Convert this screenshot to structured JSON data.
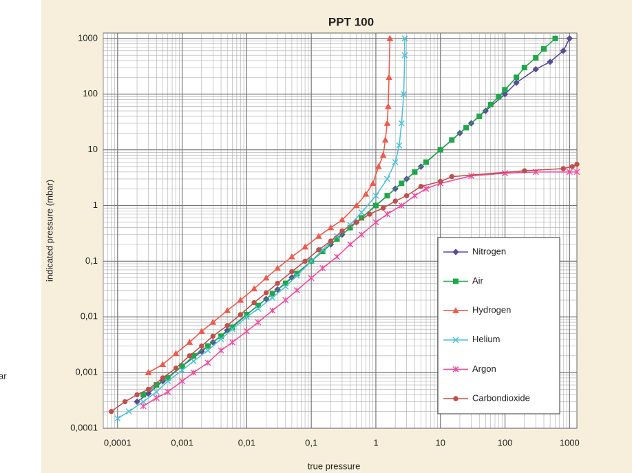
{
  "chart_data": {
    "type": "line",
    "title": "PPT 100",
    "xlabel": "true pressure",
    "ylabel": "indicated pressure (mbar)",
    "annotations": [
      "ar"
    ],
    "xscale": "log",
    "yscale": "log",
    "grid": true,
    "legend": "lower right",
    "xlim": [
      6e-05,
      1300
    ],
    "ylim": [
      0.0001,
      1250
    ],
    "xticks": [
      {
        "value": 0.0001,
        "label": "0,0001"
      },
      {
        "value": 0.001,
        "label": "0,001"
      },
      {
        "value": 0.01,
        "label": "0,01"
      },
      {
        "value": 0.1,
        "label": "0,1"
      },
      1,
      10,
      100,
      1000
    ],
    "yticks": [
      {
        "value": 0.0001,
        "label": "0,0001"
      },
      {
        "value": 0.001,
        "label": "0,001"
      },
      {
        "value": 0.01,
        "label": "0,01"
      },
      {
        "value": 0.1,
        "label": "0,1"
      },
      1,
      10,
      100,
      1000
    ],
    "series": [
      {
        "name": "Nitrogen",
        "color": "#5a4a9c",
        "marker": "diamond",
        "x": [
          0.0002,
          0.0003,
          0.0005,
          0.001,
          0.002,
          0.003,
          0.005,
          0.01,
          0.02,
          0.03,
          0.05,
          0.1,
          0.2,
          0.3,
          0.5,
          1,
          2,
          3,
          5,
          10,
          20,
          30,
          50,
          100,
          150,
          300,
          500,
          800,
          1000
        ],
        "values": [
          0.0003,
          0.00042,
          0.0007,
          0.0013,
          0.0024,
          0.0035,
          0.0057,
          0.011,
          0.021,
          0.031,
          0.051,
          0.1,
          0.2,
          0.3,
          0.5,
          1,
          2,
          3,
          5,
          10,
          20,
          30,
          50,
          100,
          160,
          280,
          380,
          600,
          1000
        ]
      },
      {
        "name": "Air",
        "color": "#1ea84a",
        "marker": "square",
        "x": [
          0.00025,
          0.0004,
          0.0006,
          0.001,
          0.0015,
          0.0025,
          0.004,
          0.006,
          0.01,
          0.015,
          0.025,
          0.04,
          0.06,
          0.1,
          0.15,
          0.25,
          0.4,
          0.6,
          1,
          1.5,
          2.5,
          4,
          6,
          10,
          15,
          25,
          40,
          60,
          80,
          100,
          150,
          200,
          300,
          400,
          600
        ],
        "values": [
          0.0004,
          0.0006,
          0.0008,
          0.0013,
          0.002,
          0.003,
          0.0045,
          0.0065,
          0.011,
          0.016,
          0.026,
          0.04,
          0.06,
          0.1,
          0.15,
          0.25,
          0.4,
          0.6,
          1,
          1.5,
          2.5,
          4,
          6,
          10,
          15,
          25,
          40,
          65,
          90,
          120,
          200,
          300,
          450,
          650,
          1000
        ]
      },
      {
        "name": "Hydrogen",
        "color": "#f05a4c",
        "marker": "triangle",
        "x": [
          0.0003,
          0.0005,
          0.0008,
          0.0013,
          0.002,
          0.003,
          0.005,
          0.008,
          0.013,
          0.02,
          0.03,
          0.05,
          0.08,
          0.13,
          0.2,
          0.3,
          0.5,
          0.7,
          0.9,
          1.1,
          1.3,
          1.4,
          1.5,
          1.55,
          1.6,
          1.65
        ],
        "values": [
          0.001,
          0.0014,
          0.0022,
          0.0035,
          0.0055,
          0.008,
          0.013,
          0.02,
          0.032,
          0.05,
          0.075,
          0.12,
          0.18,
          0.28,
          0.4,
          0.55,
          1,
          1.6,
          2.5,
          5,
          8,
          15,
          30,
          60,
          200,
          1000
        ]
      },
      {
        "name": "Helium",
        "color": "#4cc2da",
        "marker": "x",
        "x": [
          0.0001,
          0.00015,
          0.00025,
          0.0004,
          0.0006,
          0.001,
          0.0015,
          0.0025,
          0.004,
          0.006,
          0.01,
          0.015,
          0.025,
          0.04,
          0.06,
          0.1,
          0.15,
          0.25,
          0.4,
          0.6,
          1,
          1.5,
          2,
          2.3,
          2.5,
          2.7,
          2.8,
          2.8
        ],
        "values": [
          0.00015,
          0.0002,
          0.0003,
          0.00045,
          0.0007,
          0.0011,
          0.0016,
          0.0025,
          0.004,
          0.006,
          0.01,
          0.014,
          0.022,
          0.035,
          0.055,
          0.1,
          0.16,
          0.28,
          0.45,
          0.75,
          1.5,
          3,
          6,
          12,
          30,
          100,
          500,
          1000
        ]
      },
      {
        "name": "Argon",
        "color": "#f04c9e",
        "marker": "star",
        "x": [
          0.00025,
          0.0004,
          0.0006,
          0.001,
          0.0015,
          0.0025,
          0.004,
          0.006,
          0.01,
          0.015,
          0.025,
          0.04,
          0.06,
          0.1,
          0.15,
          0.25,
          0.4,
          0.6,
          1,
          1.5,
          2.5,
          4,
          6,
          10,
          30,
          100,
          300,
          1000,
          1300
        ],
        "values": [
          0.00025,
          0.00035,
          0.00045,
          0.0007,
          0.001,
          0.0015,
          0.0025,
          0.0035,
          0.0055,
          0.008,
          0.013,
          0.02,
          0.03,
          0.05,
          0.075,
          0.12,
          0.2,
          0.3,
          0.5,
          0.7,
          1,
          1.5,
          2,
          2.5,
          3.4,
          3.8,
          4,
          4,
          4
        ]
      },
      {
        "name": "Carbondioxide",
        "color": "#c0504a",
        "marker": "circle",
        "x": [
          8e-05,
          0.00013,
          0.0002,
          0.0003,
          0.0005,
          0.0008,
          0.0013,
          0.002,
          0.003,
          0.005,
          0.008,
          0.013,
          0.02,
          0.03,
          0.05,
          0.08,
          0.13,
          0.2,
          0.3,
          0.5,
          0.8,
          1.3,
          2,
          3,
          5,
          10,
          15,
          200,
          800,
          1100,
          1300
        ],
        "values": [
          0.0002,
          0.0003,
          0.0004,
          0.0005,
          0.0008,
          0.0012,
          0.002,
          0.003,
          0.0045,
          0.007,
          0.011,
          0.018,
          0.027,
          0.04,
          0.065,
          0.1,
          0.16,
          0.23,
          0.35,
          0.5,
          0.7,
          0.9,
          1.2,
          1.5,
          2.2,
          2.7,
          3.3,
          4.2,
          4.6,
          5,
          5.5
        ]
      }
    ]
  }
}
